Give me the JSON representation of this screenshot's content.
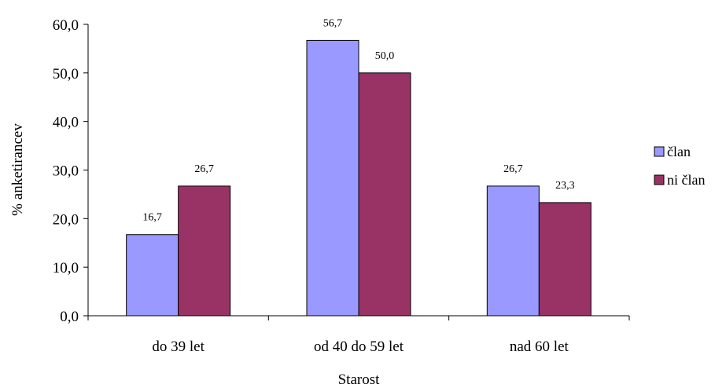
{
  "chart_data": {
    "type": "bar",
    "categories": [
      "do 39 let",
      "od 40 do 59 let",
      "nad 60 let"
    ],
    "series": [
      {
        "name": "član",
        "values": [
          16.7,
          56.7,
          26.7
        ],
        "labels": [
          "16,7",
          "56,7",
          "26,7"
        ],
        "color": "#9999FF"
      },
      {
        "name": "ni član",
        "values": [
          26.7,
          50.0,
          23.3
        ],
        "labels": [
          "26,7",
          "50,0",
          "23,3"
        ],
        "color": "#993366"
      }
    ],
    "ylim": [
      0,
      60
    ],
    "yticks": [
      0,
      10,
      20,
      30,
      40,
      50,
      60
    ],
    "ytick_labels": [
      "0,0",
      "10,0",
      "20,0",
      "30,0",
      "40,0",
      "50,0",
      "60,0"
    ],
    "xlabel": "Starost",
    "ylabel": "% anketirancev",
    "legend_position": "right",
    "grid": false
  }
}
